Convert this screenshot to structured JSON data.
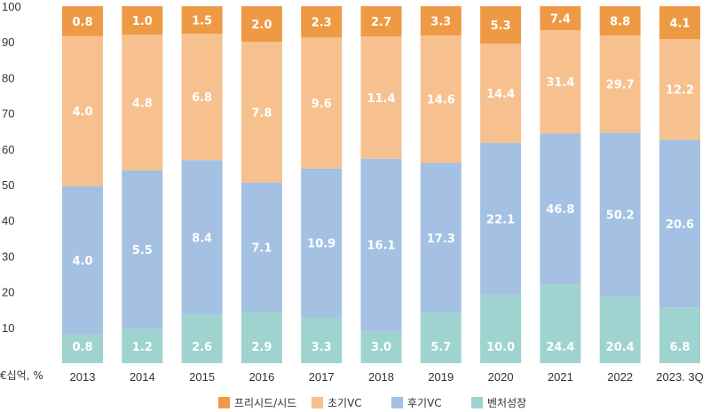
{
  "chart_data": {
    "type": "bar",
    "stacked": true,
    "normalized": true,
    "title": "",
    "unit_label": "€십억, %",
    "ylim": [
      0,
      100
    ],
    "y_ticks": [
      10,
      20,
      30,
      40,
      50,
      60,
      70,
      80,
      90,
      100
    ],
    "categories": [
      "2013",
      "2014",
      "2015",
      "2016",
      "2017",
      "2018",
      "2019",
      "2020",
      "2021",
      "2022",
      "2023. 3Q"
    ],
    "series": [
      {
        "name": "벤처성장",
        "color": "#9ed3cf",
        "values": [
          0.8,
          1.2,
          2.6,
          2.9,
          3.3,
          3.0,
          5.7,
          10.0,
          24.4,
          20.4,
          6.8
        ],
        "labels": [
          "0.8",
          "1.2",
          "2.6",
          "2.9",
          "3.3",
          "3.0",
          "5.7",
          "10.0",
          "24.4",
          "20.4",
          "6.8"
        ],
        "share_percent": [
          8,
          9.7,
          13.6,
          14.4,
          12.8,
          9.0,
          14.1,
          19.2,
          22.1,
          18.7,
          15.6
        ]
      },
      {
        "name": "후기VC",
        "color": "#a4c0e3",
        "values": [
          4.0,
          5.5,
          8.4,
          7.1,
          10.9,
          16.1,
          17.3,
          22.1,
          46.8,
          50.2,
          20.6
        ],
        "labels": [
          "4.0",
          "5.5",
          "8.4",
          "7.1",
          "10.9",
          "16.1",
          "17.3",
          "22.1",
          "46.8",
          "50.2",
          "20.6"
        ],
        "share_percent": [
          41.6,
          44.3,
          43.3,
          36.2,
          41.7,
          48.3,
          42.0,
          42.5,
          42.3,
          45.9,
          47.0
        ]
      },
      {
        "name": "초기VC",
        "color": "#f6c18f",
        "values": [
          4.0,
          4.8,
          6.8,
          7.8,
          9.6,
          11.4,
          14.6,
          14.4,
          31.4,
          29.7,
          12.2
        ],
        "labels": [
          "4.0",
          "4.8",
          "6.8",
          "7.8",
          "9.6",
          "11.4",
          "14.6",
          "14.4",
          "31.4",
          "29.7",
          "12.2"
        ],
        "share_percent": [
          42.0,
          38.0,
          35.4,
          39.4,
          36.8,
          34.2,
          35.7,
          27.8,
          28.9,
          27.2,
          28.2
        ]
      },
      {
        "name": "프리시드/시드",
        "color": "#ee9a45",
        "values": [
          0.8,
          1.0,
          1.5,
          2.0,
          2.3,
          2.7,
          3.3,
          5.3,
          7.4,
          8.8,
          4.1
        ],
        "labels": [
          "0.8",
          "1.0",
          "1.5",
          "2.0",
          "2.3",
          "2.7",
          "3.3",
          "5.3",
          "7.4",
          "8.8",
          "4.1"
        ],
        "share_percent": [
          8.4,
          8.0,
          7.7,
          10.0,
          8.7,
          8.5,
          8.2,
          10.5,
          6.7,
          8.2,
          9.2
        ]
      }
    ],
    "legend": {
      "placement": "bottom",
      "order": [
        "프리시드/시드",
        "초기VC",
        "후기VC",
        "벤처성장"
      ]
    },
    "grid": false
  }
}
